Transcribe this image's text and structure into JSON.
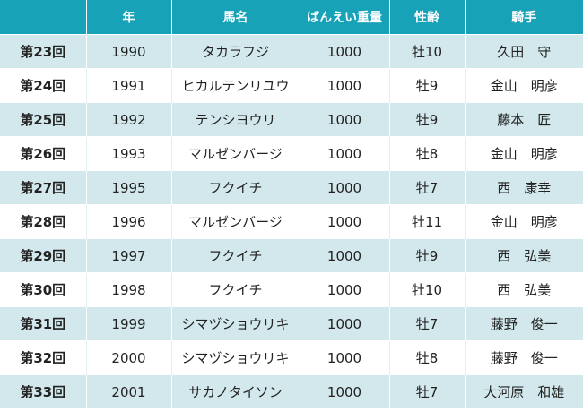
{
  "table": {
    "headers": [
      "",
      "年",
      "馬名",
      "ばんえい重量",
      "性齢",
      "騎手"
    ],
    "rows": [
      [
        "第23回",
        "1990",
        "タカラフジ",
        "1000",
        "牡10",
        "久田　守"
      ],
      [
        "第24回",
        "1991",
        "ヒカルテンリユウ",
        "1000",
        "牡9",
        "金山　明彦"
      ],
      [
        "第25回",
        "1992",
        "テンシヨウリ",
        "1000",
        "牡9",
        "藤本　匠"
      ],
      [
        "第26回",
        "1993",
        "マルゼンバージ",
        "1000",
        "牡8",
        "金山　明彦"
      ],
      [
        "第27回",
        "1995",
        "フクイチ",
        "1000",
        "牡7",
        "西　康幸"
      ],
      [
        "第28回",
        "1996",
        "マルゼンバージ",
        "1000",
        "牡11",
        "金山　明彦"
      ],
      [
        "第29回",
        "1997",
        "フクイチ",
        "1000",
        "牡9",
        "西　弘美"
      ],
      [
        "第30回",
        "1998",
        "フクイチ",
        "1000",
        "牡10",
        "西　弘美"
      ],
      [
        "第31回",
        "1999",
        "シマヅショウリキ",
        "1000",
        "牡7",
        "藤野　俊一"
      ],
      [
        "第32回",
        "2000",
        "シマヅショウリキ",
        "1000",
        "牡8",
        "藤野　俊一"
      ],
      [
        "第33回",
        "2001",
        "サカノタイソン",
        "1000",
        "牡7",
        "大河原　和雄"
      ]
    ]
  },
  "colors": {
    "header_bg": "#17a2b8",
    "header_text": "#ffffff",
    "stripe_bg": "#d2e8ec",
    "row_bg": "#ffffff"
  }
}
